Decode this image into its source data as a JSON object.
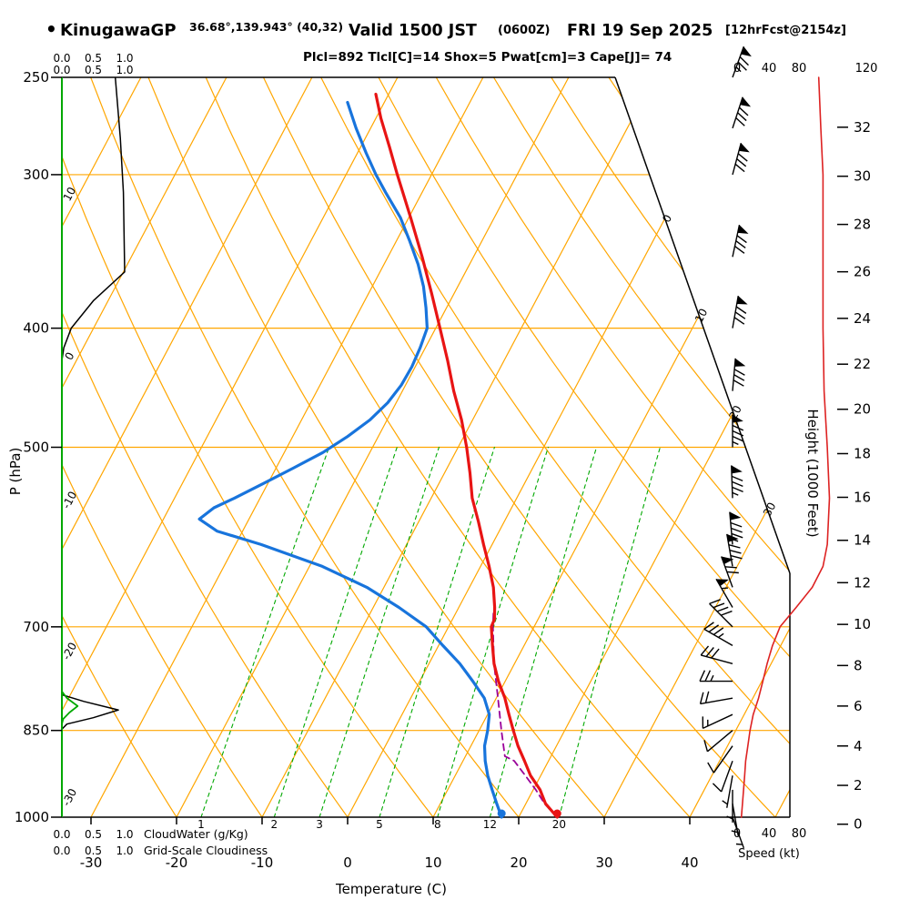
{
  "header": {
    "bullet": "•",
    "station": "KinugawaGP",
    "coords": "36.68°,139.943° (40,32)",
    "valid": "Valid 1500 JST",
    "valid_z": "(0600Z)",
    "valid_date": "FRI 19 Sep 2025",
    "fcst": "[12hrFcst@2154z]",
    "params": "Plcl=892 Tlcl[C]=14 Shox=5 Pwat[cm]=3 Cape[J]= 74"
  },
  "colors": {
    "grid_orange": "#ffa600",
    "green": "#00a800",
    "temp_red": "#e81414",
    "dew_blue": "#1874dc",
    "parcel_magenta": "#990099",
    "params_magenta": "#bb00bb",
    "speed_red": "#dd2222",
    "black": "#000000"
  },
  "legend": {
    "cloudwater": "CloudWater (g/Kg)",
    "cloudiness": "Grid-Scale Cloudiness",
    "scale_ticks": [
      "0.0",
      "0.5",
      "1.0"
    ]
  },
  "chart_data": {
    "type": "line",
    "title": "Skew-T log-P sounding for KinugawaGP, valid 1500 JST FRI 19 Sep 2025 (12hr forecast)",
    "x_axis": {
      "label": "Temperature (C)",
      "ticks": [
        -30,
        -20,
        -10,
        0,
        10,
        20,
        30,
        40
      ],
      "range": [
        -30,
        40
      ]
    },
    "y_axis": {
      "label": "P (hPa)",
      "ticks": [
        250,
        300,
        400,
        500,
        700,
        850,
        1000
      ],
      "scale": "log",
      "range": [
        250,
        1000
      ]
    },
    "height_axis": {
      "label": "Height (1000 Feet)",
      "ticks": [
        0,
        2,
        4,
        6,
        8,
        10,
        12,
        14,
        16,
        18,
        20,
        22,
        24,
        26,
        28,
        30,
        32
      ]
    },
    "speed_axis": {
      "label": "Speed (kt)",
      "top_ticks": [
        0,
        40,
        80,
        120
      ],
      "bottom_ticks": [
        0,
        40,
        80
      ]
    },
    "grid": {
      "isobars_hpa": [
        300,
        400,
        500,
        700,
        850
      ],
      "isotherm_step_c": 10,
      "isotherm_labels": [
        0,
        10,
        20,
        30
      ],
      "dry_adiabat_labels": [
        10,
        0,
        -10,
        -20,
        -30
      ],
      "mixing_ratio_labels_g_kg": [
        1,
        2,
        3,
        5,
        8,
        12,
        20
      ]
    },
    "series": {
      "temperature_c": [
        [
          1000,
          24.5
        ],
        [
          975,
          22.3
        ],
        [
          950,
          20.8
        ],
        [
          925,
          18.8
        ],
        [
          900,
          17.2
        ],
        [
          875,
          15.5
        ],
        [
          850,
          14
        ],
        [
          825,
          12.5
        ],
        [
          800,
          11
        ],
        [
          775,
          9.2
        ],
        [
          750,
          7.6
        ],
        [
          725,
          6.3
        ],
        [
          700,
          5
        ],
        [
          690,
          4.9
        ],
        [
          675,
          4.2
        ],
        [
          650,
          2.8
        ],
        [
          625,
          1
        ],
        [
          600,
          -1
        ],
        [
          575,
          -3
        ],
        [
          550,
          -5.2
        ],
        [
          525,
          -7
        ],
        [
          500,
          -9
        ],
        [
          475,
          -11.3
        ],
        [
          450,
          -14
        ],
        [
          425,
          -16.6
        ],
        [
          400,
          -19.5
        ],
        [
          375,
          -22.6
        ],
        [
          350,
          -26
        ],
        [
          325,
          -29.8
        ],
        [
          300,
          -34
        ],
        [
          285,
          -36.6
        ],
        [
          270,
          -39.4
        ],
        [
          258,
          -41.5
        ]
      ],
      "dewpoint_c": [
        [
          1000,
          18
        ],
        [
          975,
          16.6
        ],
        [
          950,
          15.2
        ],
        [
          925,
          13.8
        ],
        [
          900,
          12.6
        ],
        [
          875,
          11.6
        ],
        [
          850,
          11
        ],
        [
          825,
          10.2
        ],
        [
          800,
          8.6
        ],
        [
          775,
          6.2
        ],
        [
          750,
          3.6
        ],
        [
          725,
          0.5
        ],
        [
          700,
          -2.6
        ],
        [
          675,
          -7
        ],
        [
          650,
          -12
        ],
        [
          625,
          -18.5
        ],
        [
          600,
          -27
        ],
        [
          585,
          -33
        ],
        [
          572,
          -35.8
        ],
        [
          560,
          -34.8
        ],
        [
          550,
          -33
        ],
        [
          535,
          -30.5
        ],
        [
          520,
          -28
        ],
        [
          505,
          -25.5
        ],
        [
          490,
          -23.6
        ],
        [
          475,
          -22
        ],
        [
          460,
          -21
        ],
        [
          445,
          -20.5
        ],
        [
          430,
          -20.4
        ],
        [
          415,
          -20.6
        ],
        [
          400,
          -21
        ],
        [
          385,
          -22.4
        ],
        [
          370,
          -24
        ],
        [
          355,
          -26
        ],
        [
          340,
          -28.4
        ],
        [
          325,
          -31
        ],
        [
          310,
          -34.3
        ],
        [
          300,
          -36.5
        ],
        [
          288,
          -39
        ],
        [
          275,
          -41.7
        ],
        [
          262,
          -44.3
        ]
      ],
      "parcel_c": [
        [
          1000,
          24.5
        ],
        [
          975,
          22.2
        ],
        [
          950,
          20.3
        ],
        [
          925,
          18.2
        ],
        [
          900,
          16
        ],
        [
          892,
          14.6
        ],
        [
          850,
          12.6
        ],
        [
          800,
          10.2
        ],
        [
          750,
          7.6
        ],
        [
          700,
          5.2
        ],
        [
          680,
          4.3
        ]
      ],
      "cloudiness_0_1": [
        [
          250,
          0.85
        ],
        [
          280,
          0.93
        ],
        [
          310,
          0.98
        ],
        [
          360,
          1.0
        ],
        [
          380,
          0.5
        ],
        [
          400,
          0.15
        ],
        [
          415,
          0.03
        ],
        [
          425,
          0
        ],
        [
          795,
          0
        ],
        [
          805,
          0.35
        ],
        [
          818,
          0.9
        ],
        [
          830,
          0.5
        ],
        [
          840,
          0.08
        ],
        [
          848,
          0
        ],
        [
          1000,
          0
        ]
      ],
      "cloud_water_g_kg": [
        [
          250,
          0
        ],
        [
          790,
          0
        ],
        [
          800,
          0.08
        ],
        [
          812,
          0.25
        ],
        [
          822,
          0.12
        ],
        [
          832,
          0.02
        ],
        [
          840,
          0
        ],
        [
          1000,
          0
        ]
      ],
      "wind_barbs": [
        [
          1000,
          160,
          4
        ],
        [
          975,
          170,
          5
        ],
        [
          950,
          180,
          6
        ],
        [
          925,
          190,
          7
        ],
        [
          900,
          200,
          8
        ],
        [
          875,
          215,
          10
        ],
        [
          850,
          230,
          12
        ],
        [
          825,
          245,
          15
        ],
        [
          800,
          260,
          20
        ],
        [
          775,
          270,
          24
        ],
        [
          750,
          285,
          28
        ],
        [
          725,
          300,
          33
        ],
        [
          700,
          315,
          40
        ],
        [
          675,
          330,
          55
        ],
        [
          650,
          340,
          70
        ],
        [
          625,
          350,
          80
        ],
        [
          600,
          355,
          84
        ],
        [
          550,
          358,
          86
        ],
        [
          500,
          0,
          84
        ],
        [
          450,
          5,
          81
        ],
        [
          400,
          10,
          80
        ],
        [
          350,
          12,
          80
        ],
        [
          300,
          15,
          80
        ],
        [
          275,
          18,
          78
        ],
        [
          250,
          20,
          76
        ]
      ]
    }
  }
}
